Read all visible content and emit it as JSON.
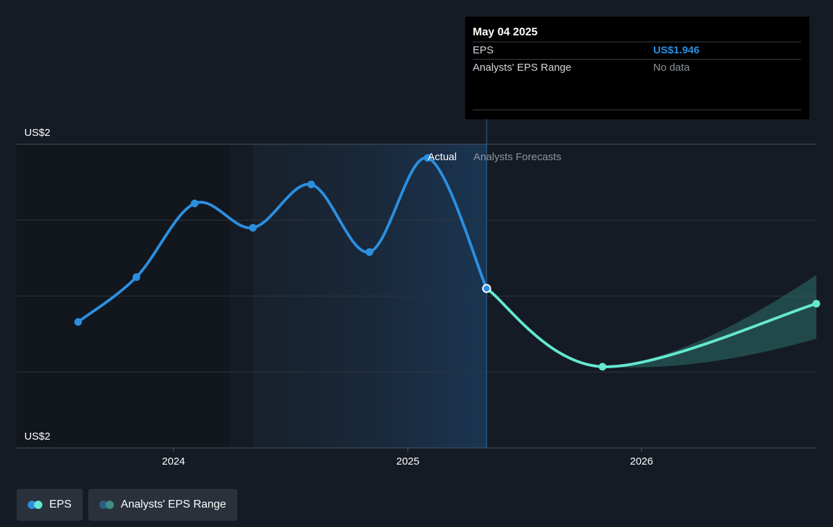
{
  "colors": {
    "background": "#151b24",
    "actual_line": "#2b8fe0",
    "forecast_line": "#64e8d0",
    "range_band": "#2d6f6a",
    "grid": "#2e3540",
    "tooltip_bg": "#000000"
  },
  "tooltip": {
    "date": "May 04 2025",
    "rows": [
      {
        "label": "EPS",
        "value": "US$1.946"
      },
      {
        "label": "Analysts' EPS Range",
        "value": "No data"
      }
    ]
  },
  "region_labels": {
    "actual": "Actual",
    "forecast": "Analysts Forecasts"
  },
  "legend": [
    {
      "label": "EPS",
      "icon": "eps-dots-icon"
    },
    {
      "label": "Analysts' EPS Range",
      "icon": "range-dots-icon"
    }
  ],
  "chart_data": {
    "type": "line",
    "title": "",
    "xlabel": "",
    "ylabel": "",
    "x_ticks": [
      "2024",
      "2025",
      "2026"
    ],
    "y_tick_labels": [
      "US$2",
      "US$2"
    ],
    "y_range": [
      1.925,
      1.965
    ],
    "x_range": [
      "2023-05-01",
      "2026-10-01"
    ],
    "grid": "horizontal",
    "series": [
      {
        "name": "EPS",
        "kind": "actual",
        "points": [
          {
            "x": "2023-08-05",
            "y": 1.9416
          },
          {
            "x": "2023-11-04",
            "y": 1.9475
          },
          {
            "x": "2024-02-03",
            "y": 1.9572
          },
          {
            "x": "2024-05-04",
            "y": 1.954
          },
          {
            "x": "2024-08-03",
            "y": 1.9597
          },
          {
            "x": "2024-11-02",
            "y": 1.9508
          },
          {
            "x": "2025-02-01",
            "y": 1.9632
          },
          {
            "x": "2025-05-04",
            "y": 1.946
          }
        ]
      },
      {
        "name": "EPS",
        "kind": "forecast",
        "points": [
          {
            "x": "2025-05-04",
            "y": 1.946
          },
          {
            "x": "2025-11-01",
            "y": 1.9357
          },
          {
            "x": "2026-10-01",
            "y": 1.944
          }
        ]
      }
    ],
    "range_band_end": {
      "x": "2026-10-01",
      "low": 1.9394,
      "high": 1.9478
    },
    "highlight_region": {
      "from": "2024-05-04",
      "to": "2025-05-04"
    },
    "legend_placement": "bottom-left"
  }
}
